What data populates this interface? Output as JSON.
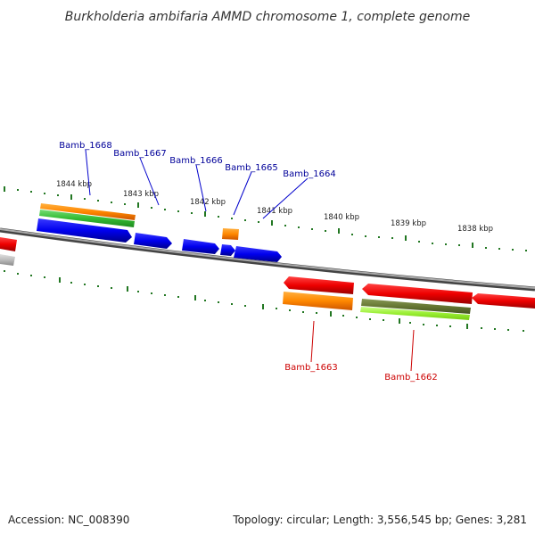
{
  "title": "Burkholderia ambifaria AMMD chromosome 1, complete genome",
  "footer": {
    "accession": "Accession: NC_008390",
    "stats": "Topology: circular; Length: 3,556,545 bp; Genes: 3,281"
  },
  "ticks": [
    "1844 kbp",
    "1843 kbp",
    "1842 kbp",
    "1841 kbp",
    "1840 kbp",
    "1839 kbp",
    "1838 kbp"
  ],
  "top_labels": [
    "Bamb_1668",
    "Bamb_1667",
    "Bamb_1666",
    "Bamb_1665",
    "Bamb_1664"
  ],
  "bottom_labels": [
    "Bamb_1663",
    "Bamb_1662"
  ],
  "colors": {
    "forward_gene": "#0000ee",
    "reverse_gene": "#ee0000",
    "top_label": "#000099",
    "bottom_label": "#cc0000",
    "orange_feature": "#ff8800",
    "green_feature": "#33bb33",
    "lightgreen_feature": "#99ee33",
    "olive_feature": "#667733",
    "backbone": "#888888",
    "tick": "#227722"
  }
}
